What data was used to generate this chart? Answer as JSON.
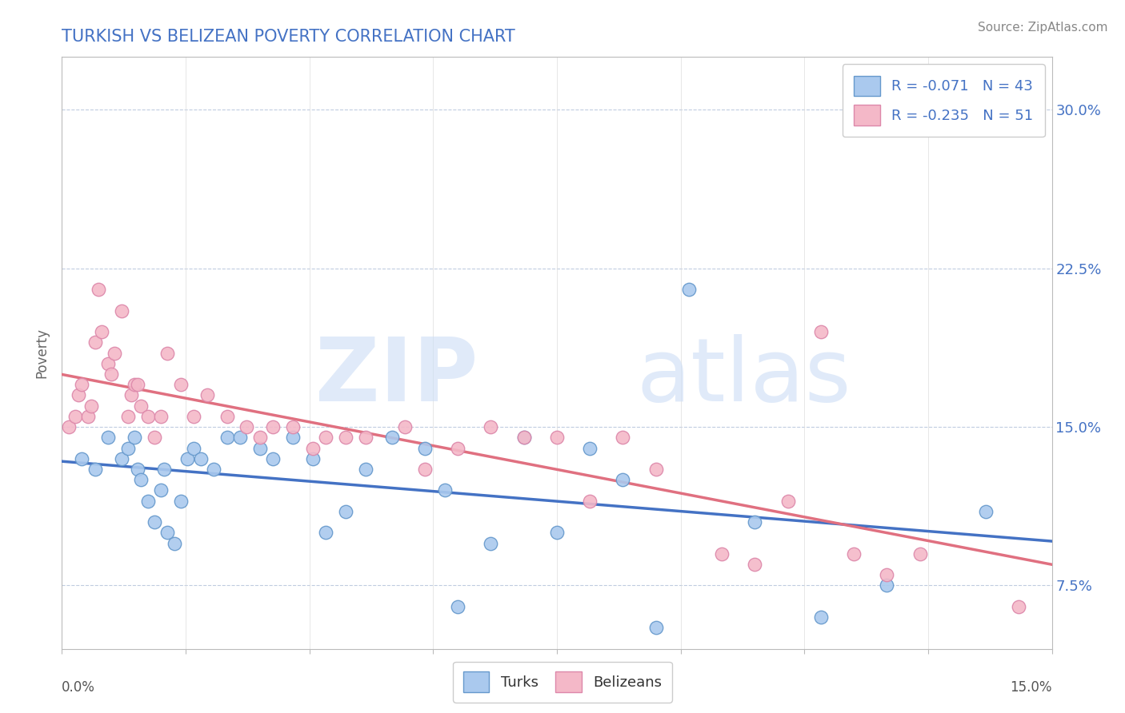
{
  "title": "TURKISH VS BELIZEAN POVERTY CORRELATION CHART",
  "source_text": "Source: ZipAtlas.com",
  "ylabel": "Poverty",
  "xlim": [
    0.0,
    15.0
  ],
  "ylim": [
    4.5,
    32.5
  ],
  "yticks": [
    7.5,
    15.0,
    22.5,
    30.0
  ],
  "ytick_labels": [
    "7.5%",
    "15.0%",
    "22.5%",
    "30.0%"
  ],
  "xticks": [
    0.0,
    1.875,
    3.75,
    5.625,
    7.5,
    9.375,
    11.25,
    13.125,
    15.0
  ],
  "watermark_zip": "ZIP",
  "watermark_atlas": "atlas",
  "turks_color": "#aac9ee",
  "turks_edge_color": "#6699cc",
  "belizeans_color": "#f4b8c8",
  "belizeans_edge_color": "#dd88aa",
  "trendline_turks_color": "#4472c4",
  "trendline_belizeans_color": "#e07080",
  "legend_label_turks": "R = -0.071   N = 43",
  "legend_label_belizeans": "R = -0.235   N = 51",
  "turks_x": [
    0.3,
    0.5,
    0.7,
    0.9,
    1.0,
    1.1,
    1.15,
    1.2,
    1.3,
    1.4,
    1.5,
    1.55,
    1.6,
    1.7,
    1.8,
    1.9,
    2.0,
    2.1,
    2.3,
    2.5,
    2.7,
    3.0,
    3.2,
    3.5,
    3.8,
    4.0,
    4.3,
    4.6,
    5.0,
    5.5,
    5.8,
    6.0,
    6.5,
    7.0,
    7.5,
    8.0,
    8.5,
    9.0,
    9.5,
    10.5,
    11.5,
    12.5,
    14.0
  ],
  "turks_y": [
    13.5,
    13.0,
    14.5,
    13.5,
    14.0,
    14.5,
    13.0,
    12.5,
    11.5,
    10.5,
    12.0,
    13.0,
    10.0,
    9.5,
    11.5,
    13.5,
    14.0,
    13.5,
    13.0,
    14.5,
    14.5,
    14.0,
    13.5,
    14.5,
    13.5,
    10.0,
    11.0,
    13.0,
    14.5,
    14.0,
    12.0,
    6.5,
    9.5,
    14.5,
    10.0,
    14.0,
    12.5,
    5.5,
    21.5,
    10.5,
    6.0,
    7.5,
    11.0
  ],
  "belizeans_x": [
    0.1,
    0.2,
    0.25,
    0.3,
    0.4,
    0.45,
    0.5,
    0.55,
    0.6,
    0.7,
    0.75,
    0.8,
    0.9,
    1.0,
    1.05,
    1.1,
    1.15,
    1.2,
    1.3,
    1.4,
    1.5,
    1.6,
    1.8,
    2.0,
    2.2,
    2.5,
    2.8,
    3.0,
    3.2,
    3.5,
    3.8,
    4.0,
    4.3,
    4.6,
    5.2,
    5.5,
    6.0,
    6.5,
    7.0,
    7.5,
    8.0,
    8.5,
    9.0,
    10.0,
    10.5,
    11.0,
    11.5,
    12.0,
    12.5,
    13.0,
    14.5
  ],
  "belizeans_y": [
    15.0,
    15.5,
    16.5,
    17.0,
    15.5,
    16.0,
    19.0,
    21.5,
    19.5,
    18.0,
    17.5,
    18.5,
    20.5,
    15.5,
    16.5,
    17.0,
    17.0,
    16.0,
    15.5,
    14.5,
    15.5,
    18.5,
    17.0,
    15.5,
    16.5,
    15.5,
    15.0,
    14.5,
    15.0,
    15.0,
    14.0,
    14.5,
    14.5,
    14.5,
    15.0,
    13.0,
    14.0,
    15.0,
    14.5,
    14.5,
    11.5,
    14.5,
    13.0,
    9.0,
    8.5,
    11.5,
    19.5,
    9.0,
    8.0,
    9.0,
    6.5
  ],
  "title_color": "#4472c4",
  "source_color": "#888888",
  "ylabel_color": "#666666",
  "ytick_color": "#4472c4",
  "grid_color_h": "#c0cce0",
  "grid_color_v": "#dddddd",
  "spine_color": "#bbbbbb"
}
